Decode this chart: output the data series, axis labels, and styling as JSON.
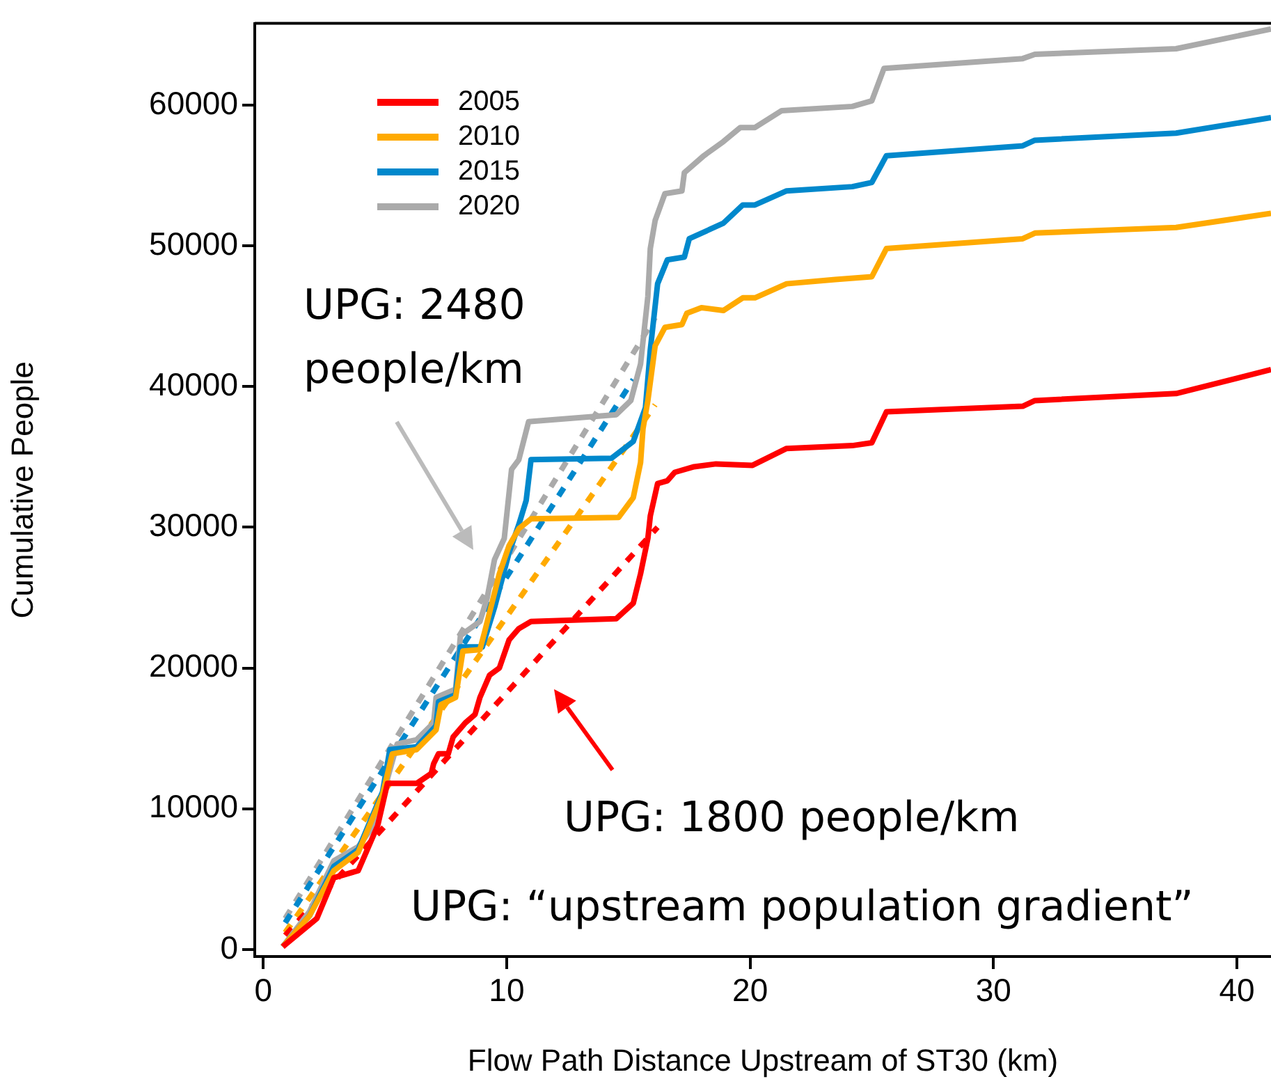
{
  "chart_data": {
    "type": "line",
    "xlabel": "Flow Path Distance Upstream of ST30 (km)",
    "ylabel": "Cumulative People",
    "xlim": [
      -0.35,
      41.4
    ],
    "xticks": [
      0,
      10,
      20,
      30,
      40
    ],
    "ylim": [
      -500,
      65800
    ],
    "yticks": [
      0,
      10000,
      20000,
      30000,
      40000,
      50000,
      60000
    ],
    "grid": false,
    "legend": "top left",
    "marker": "none",
    "line_style": "solid",
    "annotations": [
      "UPG: 2480\npeople/km",
      "UPG: 1800 people/km",
      "UPG: “upstream population gradient”"
    ],
    "series": [
      {
        "name": "2005",
        "color": "#ff0000",
        "x": [
          0.8,
          2.2,
          2.9,
          3.9,
          4.7,
          5.1,
          6.3,
          6.9,
          7.0,
          7.2,
          7.6,
          7.8,
          8.3,
          8.7,
          8.9,
          9.3,
          9.7,
          10.1,
          10.5,
          11.0,
          14.5,
          15.2,
          15.5,
          15.8,
          15.9,
          16.2,
          16.6,
          16.9,
          17.7,
          18.6,
          20.1,
          21.5,
          24.2,
          25.0,
          25.6,
          31.2,
          31.7,
          37.5,
          41.4
        ],
        "values": [
          200,
          2200,
          5100,
          5600,
          8800,
          11800,
          11800,
          12500,
          13200,
          13900,
          13900,
          15100,
          16100,
          16700,
          17900,
          19500,
          20000,
          22000,
          22800,
          23300,
          23500,
          24600,
          26700,
          29200,
          30800,
          33100,
          33300,
          33900,
          34300,
          34500,
          34400,
          35600,
          35800,
          36000,
          38200,
          38600,
          39000,
          39500,
          41200
        ]
      },
      {
        "name": "2010",
        "color": "#ffaa00",
        "x": [
          0.8,
          1.9,
          2.9,
          3.9,
          4.9,
          5.3,
          6.3,
          7.1,
          7.3,
          7.9,
          8.2,
          8.9,
          9.1,
          9.7,
          10.1,
          10.5,
          11.0,
          14.6,
          15.2,
          15.5,
          15.6,
          15.8,
          16.1,
          16.5,
          17.2,
          17.4,
          18.0,
          18.9,
          19.7,
          20.2,
          21.5,
          23.5,
          25.0,
          25.6,
          31.2,
          31.7,
          37.5,
          41.4
        ],
        "values": [
          200,
          2400,
          5600,
          6900,
          11000,
          13900,
          14200,
          15600,
          17400,
          17900,
          21200,
          21300,
          22600,
          26700,
          28700,
          29900,
          30600,
          30700,
          32100,
          34600,
          37000,
          39000,
          42900,
          44200,
          44400,
          45200,
          45600,
          45400,
          46300,
          46300,
          47300,
          47600,
          47800,
          49800,
          50500,
          50900,
          51300,
          52300
        ]
      },
      {
        "name": "2015",
        "color": "#0088cc",
        "x": [
          0.8,
          1.9,
          2.9,
          3.9,
          4.9,
          5.2,
          6.3,
          7.1,
          7.2,
          7.9,
          8.1,
          9.0,
          9.5,
          10.1,
          10.5,
          10.8,
          11.0,
          14.3,
          15.2,
          15.7,
          15.9,
          16.2,
          16.6,
          17.3,
          17.5,
          18.9,
          19.7,
          20.2,
          21.5,
          24.2,
          25.0,
          25.6,
          31.2,
          31.7,
          37.5,
          41.4
        ],
        "values": [
          200,
          2400,
          5900,
          7100,
          11200,
          14200,
          14400,
          15900,
          17600,
          18100,
          21500,
          21500,
          24300,
          28200,
          30200,
          31900,
          34800,
          34900,
          36100,
          38500,
          42600,
          47300,
          49000,
          49200,
          50500,
          51600,
          52900,
          52900,
          53900,
          54200,
          54500,
          56400,
          57100,
          57500,
          58000,
          59100
        ]
      },
      {
        "name": "2020",
        "color": "#aaaaaa",
        "x": [
          0.8,
          1.9,
          2.9,
          3.9,
          4.7,
          5.0,
          5.5,
          6.3,
          7.0,
          7.1,
          7.9,
          8.1,
          8.9,
          9.2,
          9.5,
          9.9,
          10.2,
          10.5,
          10.9,
          14.5,
          15.1,
          15.5,
          15.8,
          15.9,
          16.1,
          16.5,
          17.2,
          17.3,
          18.1,
          18.9,
          19.6,
          20.2,
          21.3,
          24.2,
          25.0,
          25.5,
          31.2,
          31.7,
          37.5,
          41.4
        ],
        "values": [
          200,
          2700,
          6300,
          7300,
          9200,
          11500,
          14600,
          14900,
          16100,
          17900,
          18500,
          22300,
          23300,
          25000,
          27700,
          29200,
          34100,
          34800,
          37500,
          38000,
          39000,
          41600,
          46400,
          49800,
          51800,
          53700,
          53900,
          55200,
          56400,
          57400,
          58400,
          58400,
          59600,
          59900,
          60300,
          62600,
          63300,
          63600,
          64000,
          65400
        ]
      },
      {
        "type": "line",
        "line_style": "dashed",
        "color": "#ff0000",
        "x": [
          0.9,
          16.2
        ],
        "values": [
          1000,
          30000
        ]
      },
      {
        "type": "line",
        "line_style": "dashed",
        "color": "#ffaa00",
        "x": [
          0.9,
          16.1
        ],
        "values": [
          1200,
          38700
        ]
      },
      {
        "type": "line",
        "line_style": "dashed",
        "color": "#0088cc",
        "x": [
          0.9,
          15.2
        ],
        "values": [
          1900,
          40500
        ]
      },
      {
        "type": "line",
        "line_style": "dashed",
        "color": "#aaaaaa",
        "x": [
          0.9,
          16.1
        ],
        "values": [
          2200,
          44900
        ]
      }
    ]
  }
}
